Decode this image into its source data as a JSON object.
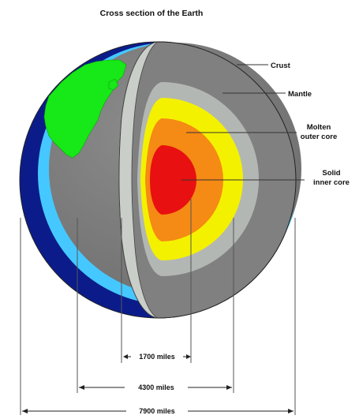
{
  "title": "Cross section of the Earth",
  "labels": {
    "crust": "Crust",
    "mantle": "Mantle",
    "outer_core_line1": "Molten",
    "outer_core_line2": "outer core",
    "inner_core_line1": "Solid",
    "inner_core_line2": "inner core"
  },
  "dimensions": {
    "inner_core_diameter": "1700 miles",
    "outer_core_diameter": "4300 miles",
    "earth_diameter": "7900 miles"
  },
  "colors": {
    "ocean_dark": "#0b1c8a",
    "ocean_light": "#45c8ff",
    "land": "#17e817",
    "crust": "#c9cec9",
    "mantle": "#808080",
    "mantle_inner": "#b3b7b3",
    "outer_core_yellow": "#f4f100",
    "outer_core_orange": "#f58a14",
    "inner_core": "#e81010"
  }
}
